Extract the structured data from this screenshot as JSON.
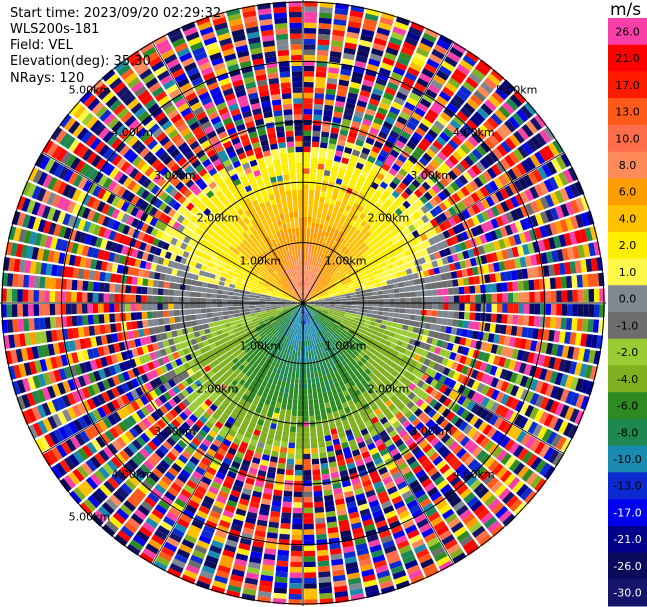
{
  "header": {
    "start_time": "Start time: 2023/09/20 02:29:32",
    "station": "WLS200s-181",
    "field": "Field: VEL",
    "elevation": "Elevation(deg): 35.30",
    "nrays": "NRays: 120"
  },
  "colorbar": {
    "unit": "m/s",
    "levels": [
      "26.0",
      "21.0",
      "17.0",
      "13.0",
      "10.0",
      "8.0",
      "6.0",
      "4.0",
      "2.0",
      "1.0",
      "0.0",
      "-1.0",
      "-2.0",
      "-4.0",
      "-6.0",
      "-8.0",
      "-10.0",
      "-13.0",
      "-17.0",
      "-21.0",
      "-26.0",
      "-30.0"
    ],
    "colors": [
      "#fb3fa8",
      "#ff0000",
      "#ff1a00",
      "#ff5a1a",
      "#ff6d4a",
      "#ff8a5a",
      "#ff9e00",
      "#ffc000",
      "#ffee00",
      "#fff84a",
      "#7f8891",
      "#6d6d6d",
      "#99cc33",
      "#80b020",
      "#2e8b22",
      "#1e8850",
      "#1a8ab0",
      "#0b2bd0",
      "#0000ee",
      "#00008b",
      "#0a0a5a",
      "#14146a"
    ]
  },
  "chart_data": {
    "type": "ppi",
    "field": "VEL",
    "units": "m/s",
    "nrays": 120,
    "elevation_deg": 35.3,
    "range_rings_km": [
      1.0,
      2.0,
      3.0,
      4.0,
      5.0
    ],
    "ring_labels": [
      "1.00km",
      "2.00km",
      "3.00km",
      "4.00km",
      "5.00km"
    ],
    "max_range_km": 5.0,
    "vmin": -30.0,
    "vmax": 30.0
  }
}
